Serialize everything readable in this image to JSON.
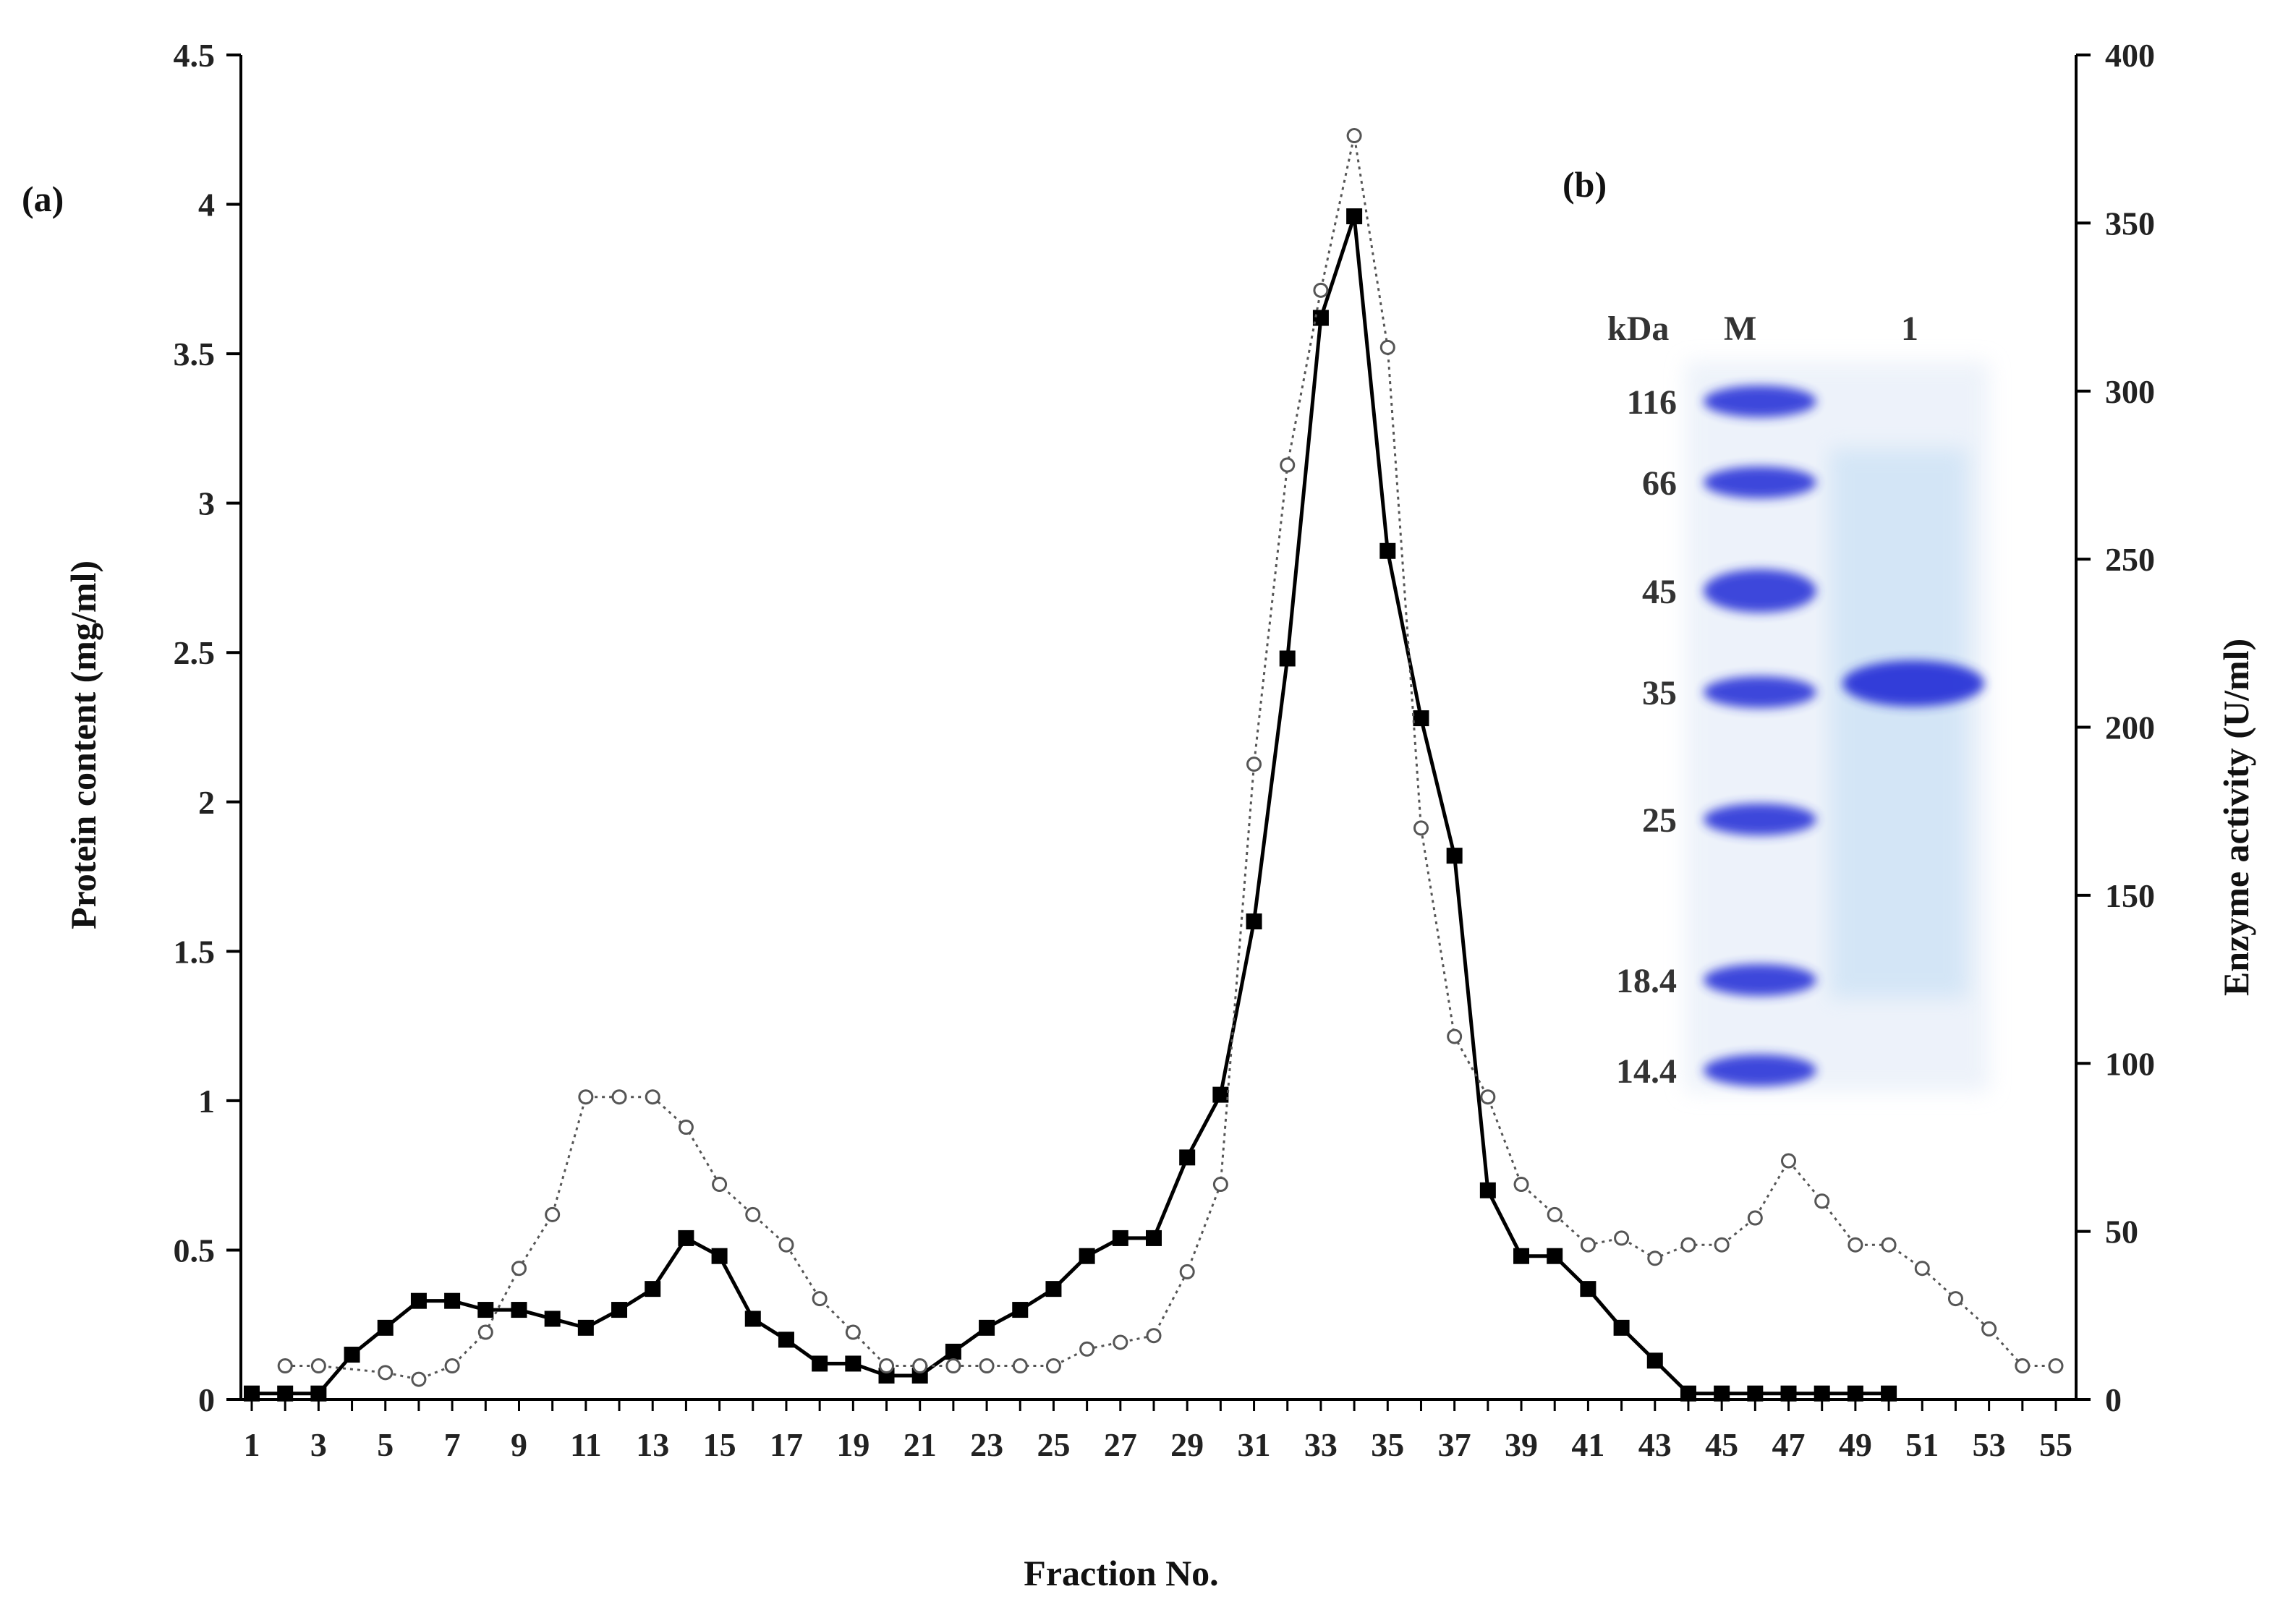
{
  "chart_data": {
    "type": "line",
    "xlabel": "Fraction No.",
    "ylabel_left": "Protein content (mg/ml)",
    "ylabel_right": "Enzyme activity (U/ml)",
    "xlim": [
      1,
      55
    ],
    "ylim_left": [
      0,
      4.5
    ],
    "ylim_right": [
      0,
      400
    ],
    "x_tick_labels": [
      "1",
      "3",
      "5",
      "7",
      "9",
      "11",
      "13",
      "15",
      "17",
      "19",
      "21",
      "23",
      "25",
      "27",
      "29",
      "31",
      "33",
      "35",
      "37",
      "39",
      "41",
      "43",
      "45",
      "47",
      "49",
      "51",
      "53",
      "55"
    ],
    "y_left_tick_labels": [
      "0",
      "0.5",
      "1",
      "1.5",
      "2",
      "2.5",
      "3",
      "3.5",
      "4",
      "4.5"
    ],
    "y_right_tick_labels": [
      "0",
      "50",
      "100",
      "150",
      "200",
      "250",
      "300",
      "350",
      "400"
    ],
    "series": [
      {
        "name": "Protein content",
        "axis": "left",
        "marker": "filled-square",
        "line": "solid",
        "points": [
          [
            1,
            0.02
          ],
          [
            2,
            0.02
          ],
          [
            3,
            0.02
          ],
          [
            4,
            0.15
          ],
          [
            5,
            0.24
          ],
          [
            6,
            0.33
          ],
          [
            7,
            0.33
          ],
          [
            8,
            0.3
          ],
          [
            9,
            0.3
          ],
          [
            10,
            0.27
          ],
          [
            11,
            0.24
          ],
          [
            12,
            0.3
          ],
          [
            13,
            0.37
          ],
          [
            14,
            0.54
          ],
          [
            15,
            0.48
          ],
          [
            16,
            0.27
          ],
          [
            17,
            0.2
          ],
          [
            18,
            0.12
          ],
          [
            19,
            0.12
          ],
          [
            20,
            0.08
          ],
          [
            21,
            0.08
          ],
          [
            22,
            0.16
          ],
          [
            23,
            0.24
          ],
          [
            24,
            0.3
          ],
          [
            25,
            0.37
          ],
          [
            26,
            0.48
          ],
          [
            27,
            0.54
          ],
          [
            28,
            0.54
          ],
          [
            29,
            0.81
          ],
          [
            30,
            1.02
          ],
          [
            31,
            1.6
          ],
          [
            32,
            2.48
          ],
          [
            33,
            3.62
          ],
          [
            34,
            3.96
          ],
          [
            35,
            2.84
          ],
          [
            36,
            2.28
          ],
          [
            37,
            1.82
          ],
          [
            38,
            0.7
          ],
          [
            39,
            0.48
          ],
          [
            40,
            0.48
          ],
          [
            41,
            0.37
          ],
          [
            42,
            0.24
          ],
          [
            43,
            0.13
          ],
          [
            44,
            0.02
          ],
          [
            45,
            0.02
          ],
          [
            46,
            0.02
          ],
          [
            47,
            0.02
          ],
          [
            48,
            0.02
          ],
          [
            49,
            0.02
          ],
          [
            50,
            0.02
          ]
        ]
      },
      {
        "name": "Enzyme activity",
        "axis": "right",
        "marker": "open-circle",
        "line": "dotted",
        "points": [
          [
            2,
            10
          ],
          [
            3,
            10
          ],
          [
            5,
            8
          ],
          [
            6,
            6
          ],
          [
            7,
            10
          ],
          [
            8,
            20
          ],
          [
            9,
            39
          ],
          [
            10,
            55
          ],
          [
            11,
            90
          ],
          [
            12,
            90
          ],
          [
            13,
            90
          ],
          [
            14,
            81
          ],
          [
            15,
            64
          ],
          [
            16,
            55
          ],
          [
            17,
            46
          ],
          [
            18,
            30
          ],
          [
            19,
            20
          ],
          [
            20,
            10
          ],
          [
            21,
            10
          ],
          [
            22,
            10
          ],
          [
            23,
            10
          ],
          [
            24,
            10
          ],
          [
            25,
            10
          ],
          [
            26,
            15
          ],
          [
            27,
            17
          ],
          [
            28,
            19
          ],
          [
            29,
            38
          ],
          [
            30,
            64
          ],
          [
            31,
            189
          ],
          [
            32,
            278
          ],
          [
            33,
            330
          ],
          [
            34,
            376
          ],
          [
            35,
            313
          ],
          [
            36,
            170
          ],
          [
            37,
            108
          ],
          [
            38,
            90
          ],
          [
            39,
            64
          ],
          [
            40,
            55
          ],
          [
            41,
            46
          ],
          [
            42,
            48
          ],
          [
            43,
            42
          ],
          [
            44,
            46
          ],
          [
            45,
            46
          ],
          [
            46,
            54
          ],
          [
            47,
            71
          ],
          [
            48,
            59
          ],
          [
            49,
            46
          ],
          [
            50,
            46
          ],
          [
            51,
            39
          ],
          [
            52,
            30
          ],
          [
            53,
            21
          ],
          [
            54,
            10
          ],
          [
            55,
            10
          ]
        ]
      }
    ]
  },
  "panel_a_label": "(a)",
  "panel_b_label": "(b)",
  "gel": {
    "unit_label": "kDa",
    "lane_labels": [
      "M",
      "1"
    ],
    "marker_sizes": [
      "116",
      "66",
      "45",
      "35",
      "25",
      "18.4",
      "14.4"
    ]
  },
  "colors": {
    "axis": "#000000",
    "protein_line": "#000000",
    "activity_line": "#555555",
    "gel_band": "#2a34d8",
    "gel_background": "#d8e4f6"
  }
}
